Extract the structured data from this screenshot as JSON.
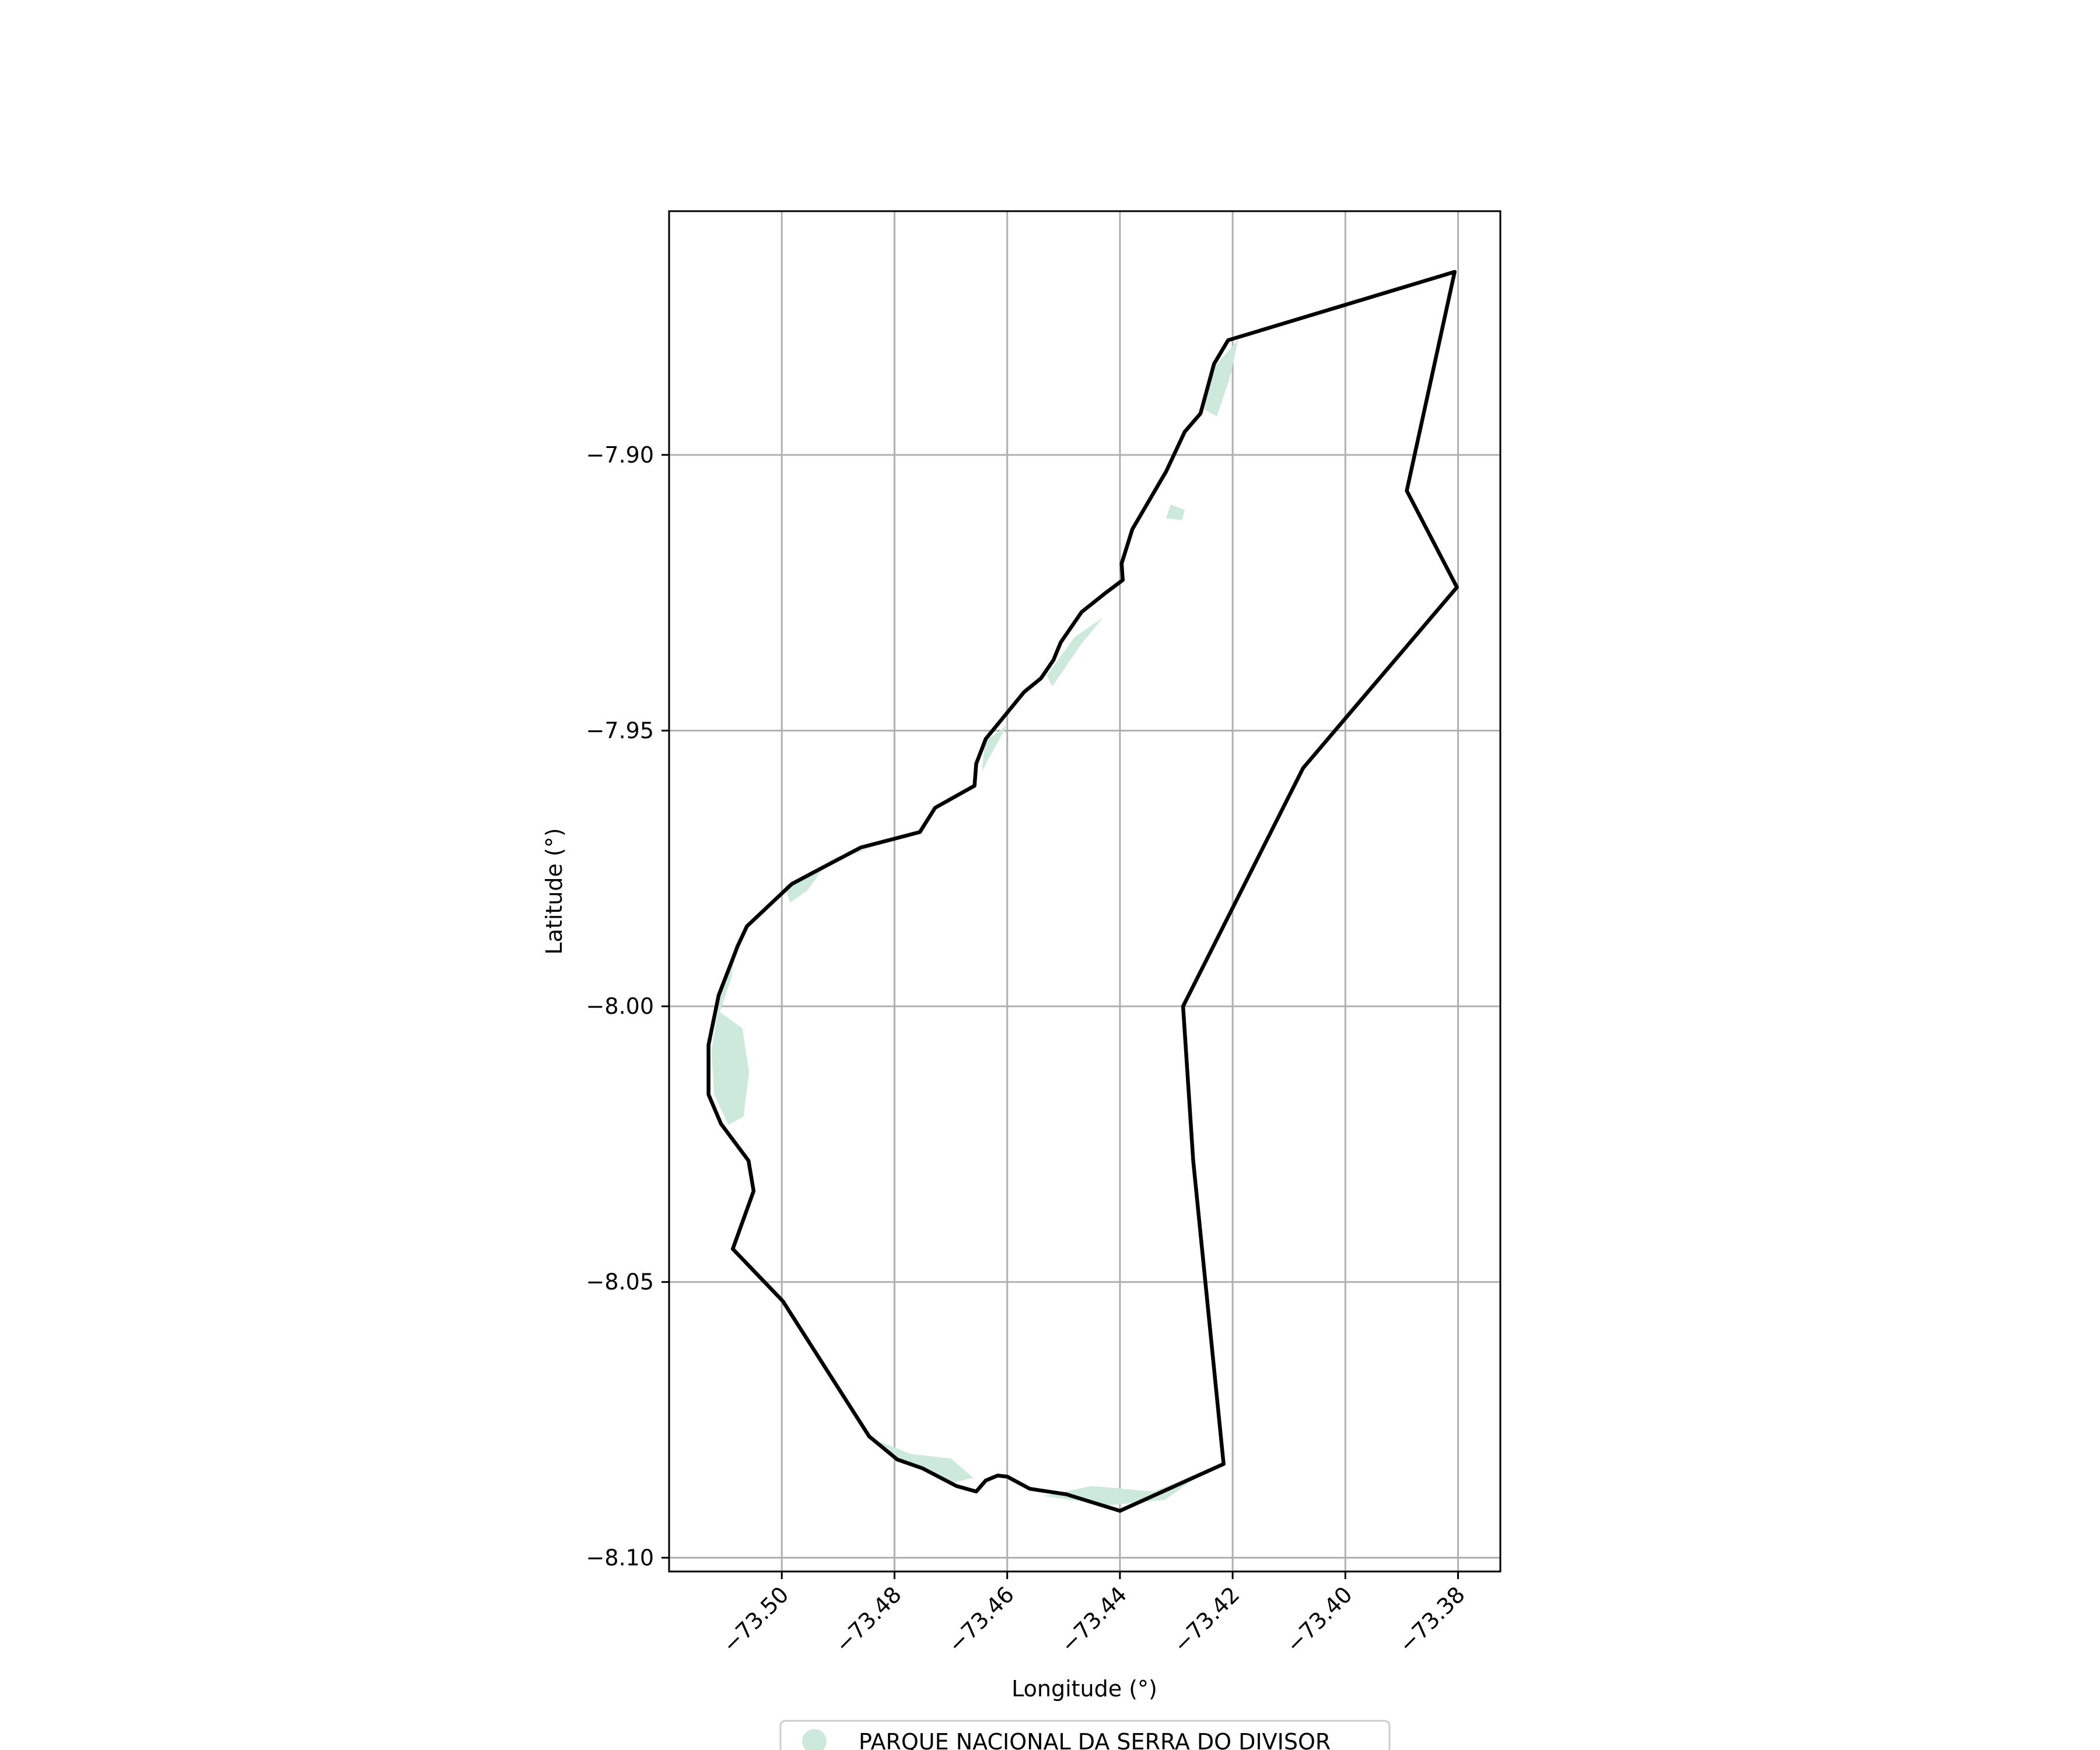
{
  "chart_data": {
    "type": "map",
    "xlabel": "Longitude (°)",
    "ylabel": "Latitude (°)",
    "xlim": [
      -73.52,
      -73.3725
    ],
    "ylim": [
      -8.1025,
      -7.8558
    ],
    "grid": true,
    "x_ticks": [
      {
        "value": -73.5,
        "label": "−73.50"
      },
      {
        "value": -73.48,
        "label": "−73.48"
      },
      {
        "value": -73.46,
        "label": "−73.46"
      },
      {
        "value": -73.44,
        "label": "−73.44"
      },
      {
        "value": -73.42,
        "label": "−73.42"
      },
      {
        "value": -73.4,
        "label": "−73.40"
      },
      {
        "value": -73.38,
        "label": "−73.38"
      }
    ],
    "y_ticks": [
      {
        "value": -7.9,
        "label": "−7.90"
      },
      {
        "value": -7.95,
        "label": "−7.95"
      },
      {
        "value": -8.0,
        "label": "−8.00"
      },
      {
        "value": -8.05,
        "label": "−8.05"
      },
      {
        "value": -8.1,
        "label": "−8.10"
      }
    ],
    "legend": {
      "placement": "bottom-center",
      "entries": [
        {
          "label": "PARQUE NACIONAL DA SERRA DO DIVISOR",
          "color": "#cde9dc",
          "marker": "circle"
        }
      ]
    },
    "boundary_color": "#000000",
    "boundary": [
      [
        -73.3806,
        -7.8668
      ],
      [
        -73.3891,
        -7.9065
      ],
      [
        -73.3802,
        -7.924
      ],
      [
        -73.4075,
        -7.9568
      ],
      [
        -73.4288,
        -8.0
      ],
      [
        -73.427,
        -8.028
      ],
      [
        -73.4216,
        -8.083
      ],
      [
        -73.44,
        -8.0915
      ],
      [
        -73.4495,
        -8.0885
      ],
      [
        -73.456,
        -8.0875
      ],
      [
        -73.46,
        -8.0853
      ],
      [
        -73.4617,
        -8.0851
      ],
      [
        -73.4638,
        -8.086
      ],
      [
        -73.4655,
        -8.088
      ],
      [
        -73.469,
        -8.087
      ],
      [
        -73.475,
        -8.0838
      ],
      [
        -73.4795,
        -8.0822
      ],
      [
        -73.4845,
        -8.078
      ],
      [
        -73.4998,
        -8.0535
      ],
      [
        -73.5087,
        -8.044
      ],
      [
        -73.505,
        -8.0335
      ],
      [
        -73.5059,
        -8.028
      ],
      [
        -73.5108,
        -8.0213
      ],
      [
        -73.513,
        -8.016
      ],
      [
        -73.513,
        -8.007
      ],
      [
        -73.5112,
        -7.998
      ],
      [
        -73.5078,
        -7.989
      ],
      [
        -73.5062,
        -7.9855
      ],
      [
        -73.4982,
        -7.9778
      ],
      [
        -73.486,
        -7.9712
      ],
      [
        -73.4755,
        -7.9684
      ],
      [
        -73.4728,
        -7.964
      ],
      [
        -73.4658,
        -7.96
      ],
      [
        -73.4655,
        -7.956
      ],
      [
        -73.4638,
        -7.9515
      ],
      [
        -73.461,
        -7.948
      ],
      [
        -73.457,
        -7.943
      ],
      [
        -73.454,
        -7.9405
      ],
      [
        -73.4518,
        -7.9372
      ],
      [
        -73.4505,
        -7.934
      ],
      [
        -73.4468,
        -7.9285
      ],
      [
        -73.4425,
        -7.925
      ],
      [
        -73.4395,
        -7.9227
      ],
      [
        -73.4397,
        -7.9197
      ],
      [
        -73.4378,
        -7.9135
      ],
      [
        -73.4318,
        -7.903
      ],
      [
        -73.4285,
        -7.8958
      ],
      [
        -73.4257,
        -7.8925
      ],
      [
        -73.4233,
        -7.8835
      ],
      [
        -73.4208,
        -7.8792
      ]
    ],
    "park_patches": [
      [
        [
          -73.511,
          -8.001
        ],
        [
          -73.509,
          -7.995
        ],
        [
          -73.508,
          -7.988
        ],
        [
          -73.511,
          -7.9985
        ],
        [
          -73.5125,
          -8.008
        ],
        [
          -73.512,
          -8.016
        ],
        [
          -73.5095,
          -8.0215
        ],
        [
          -73.5068,
          -8.02
        ],
        [
          -73.5058,
          -8.012
        ],
        [
          -73.507,
          -8.004
        ]
      ],
      [
        [
          -73.4995,
          -7.9782
        ],
        [
          -73.4905,
          -7.973
        ],
        [
          -73.483,
          -7.9708
        ],
        [
          -73.492,
          -7.9742
        ],
        [
          -73.4955,
          -7.979
        ],
        [
          -73.4985,
          -7.9812
        ]
      ],
      [
        [
          -73.4838,
          -8.0785
        ],
        [
          -73.477,
          -8.0812
        ],
        [
          -73.47,
          -8.082
        ],
        [
          -73.466,
          -8.0855
        ],
        [
          -73.47,
          -8.0865
        ],
        [
          -73.479,
          -8.0822
        ]
      ],
      [
        [
          -73.4535,
          -8.0888
        ],
        [
          -73.445,
          -8.087
        ],
        [
          -73.434,
          -8.088
        ],
        [
          -73.4245,
          -8.084
        ],
        [
          -73.432,
          -8.0895
        ],
        [
          -73.442,
          -8.0905
        ]
      ],
      [
        [
          -73.4635,
          -7.9555
        ],
        [
          -73.46,
          -7.949
        ],
        [
          -73.464,
          -7.952
        ],
        [
          -73.4645,
          -7.9575
        ]
      ],
      [
        [
          -73.453,
          -7.94
        ],
        [
          -73.448,
          -7.933
        ],
        [
          -73.443,
          -7.9295
        ],
        [
          -73.447,
          -7.9345
        ],
        [
          -73.452,
          -7.942
        ]
      ],
      [
        [
          -73.431,
          -7.909
        ],
        [
          -73.4285,
          -7.91
        ],
        [
          -73.429,
          -7.9118
        ],
        [
          -73.4318,
          -7.9115
        ]
      ],
      [
        [
          -73.424,
          -7.885
        ],
        [
          -73.419,
          -7.879
        ],
        [
          -73.4205,
          -7.886
        ],
        [
          -73.4228,
          -7.893
        ],
        [
          -73.425,
          -7.8918
        ]
      ]
    ]
  }
}
